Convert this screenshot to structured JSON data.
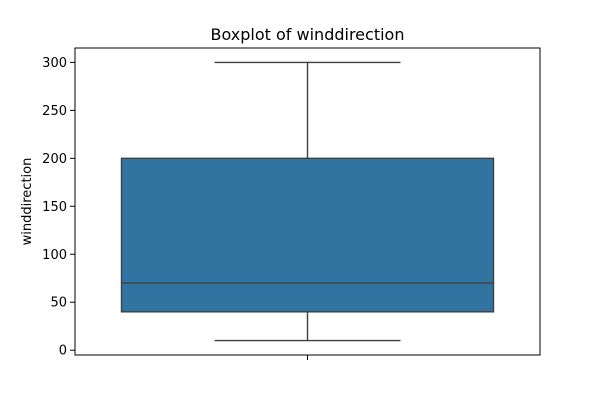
{
  "chart_data": {
    "type": "box",
    "title": "Boxplot of winddirection",
    "xlabel": "",
    "ylabel": "winddirection",
    "ylim": [
      -5,
      315
    ],
    "yticks": [
      0,
      50,
      100,
      150,
      200,
      250,
      300
    ],
    "grid": false,
    "box": {
      "whisker_low": 10,
      "q1": 40,
      "median": 70,
      "q3": 200,
      "whisker_high": 300,
      "fill_color": "#3274a1",
      "line_color": "#3f3f3f"
    }
  }
}
